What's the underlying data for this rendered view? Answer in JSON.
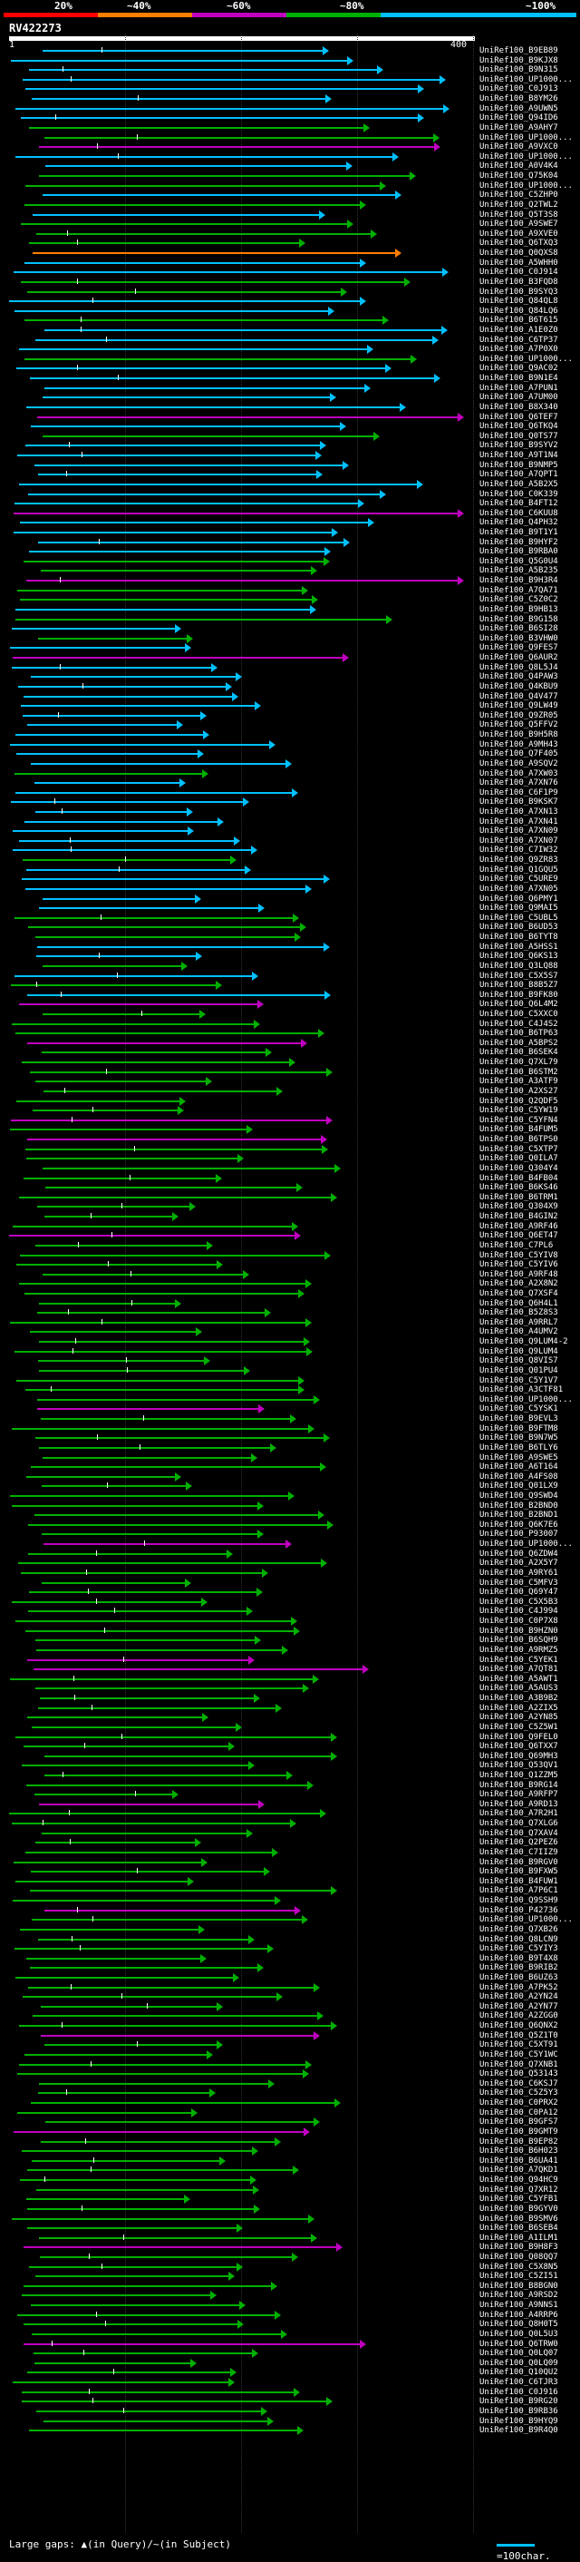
{
  "legend": {
    "colors": [
      "#ff0000",
      "#ff7f00",
      "#bf00bf",
      "#00b000",
      "#00c0ff"
    ],
    "labels": [
      "20%",
      "~40%",
      "~60%",
      "~80%",
      "~100%"
    ]
  },
  "query": {
    "id": "RV422273",
    "start": "1",
    "end": "400"
  },
  "footer": {
    "gaps": "Large gaps: ▲(in Query)/~(in Subject)",
    "scale": "=100char."
  },
  "hits": [
    {
      "label": "UniRef100_B9EB89",
      "c": 4
    },
    {
      "label": "UniRef100_B9KJX8",
      "c": 4
    },
    {
      "label": "UniRef100_B9N315",
      "c": 4
    },
    {
      "label": "UniRef100_UP1000...",
      "c": 4
    },
    {
      "label": "UniRef100_C0J913",
      "c": 4
    },
    {
      "label": "UniRef100_B8YM26",
      "c": 4
    },
    {
      "label": "UniRef100_A9UWN5",
      "c": 4
    },
    {
      "label": "UniRef100_Q94ID6",
      "c": 4
    },
    {
      "label": "UniRef100_A9AHY7",
      "c": 3
    },
    {
      "label": "UniRef100_UP1000...",
      "c": 3
    },
    {
      "label": "UniRef100_A9VXC0",
      "c": 2
    },
    {
      "label": "UniRef100_UP1000...",
      "c": 4
    },
    {
      "label": "UniRef100_A0V4K4",
      "c": 4
    },
    {
      "label": "UniRef100_Q75K04",
      "c": 3
    },
    {
      "label": "UniRef100_UP1000...",
      "c": 3
    },
    {
      "label": "UniRef100_C5ZHP0",
      "c": 4
    },
    {
      "label": "UniRef100_Q2TWL2",
      "c": 3
    },
    {
      "label": "UniRef100_Q5T3S8",
      "c": 4
    },
    {
      "label": "UniRef100_A9SWE7",
      "c": 3
    },
    {
      "label": "UniRef100_A9XVE0",
      "c": 3
    },
    {
      "label": "UniRef100_Q6TXQ3",
      "c": 3
    },
    {
      "label": "UniRef100_Q0QXS8",
      "c": 1
    },
    {
      "label": "UniRef100_A5WHH0",
      "c": 4
    },
    {
      "label": "UniRef100_C0J914",
      "c": 4
    },
    {
      "label": "UniRef100_B3FQD8",
      "c": 3
    },
    {
      "label": "UniRef100_B9SYQ3",
      "c": 3
    },
    {
      "label": "UniRef100_Q84QL8",
      "c": 4
    },
    {
      "label": "UniRef100_Q84LQ6",
      "c": 4
    },
    {
      "label": "UniRef100_B6T615",
      "c": 3
    },
    {
      "label": "UniRef100_A1E0Z0",
      "c": 4
    },
    {
      "label": "UniRef100_C6TP37",
      "c": 4
    },
    {
      "label": "UniRef100_A7P0X0",
      "c": 4
    },
    {
      "label": "UniRef100_UP1000...",
      "c": 3
    },
    {
      "label": "UniRef100_Q9AC02",
      "c": 4
    },
    {
      "label": "UniRef100_B9N1E4",
      "c": 4
    },
    {
      "label": "UniRef100_A7PUN1",
      "c": 4
    },
    {
      "label": "UniRef100_A7UM00",
      "c": 4
    },
    {
      "label": "UniRef100_B8X340",
      "c": 4
    },
    {
      "label": "UniRef100_Q6TEF7",
      "c": 2
    },
    {
      "label": "UniRef100_Q6TKQ4",
      "c": 4
    },
    {
      "label": "UniRef100_Q0TS77",
      "c": 3
    },
    {
      "label": "UniRef100_B9SYV2",
      "c": 4
    },
    {
      "label": "UniRef100_A9T1N4",
      "c": 4
    },
    {
      "label": "UniRef100_B9NMP5",
      "c": 4
    },
    {
      "label": "UniRef100_A7QPT1",
      "c": 4
    },
    {
      "label": "UniRef100_A5B2X5",
      "c": 4
    },
    {
      "label": "UniRef100_C0K339",
      "c": 4
    },
    {
      "label": "UniRef100_B4FT12",
      "c": 4
    },
    {
      "label": "UniRef100_C6KUU8",
      "c": 2
    },
    {
      "label": "UniRef100_Q4PH32",
      "c": 4
    },
    {
      "label": "UniRef100_B9T1Y1",
      "c": 4
    },
    {
      "label": "UniRef100_B9HYF2",
      "c": 4
    },
    {
      "label": "UniRef100_B9RBA0",
      "c": 4
    },
    {
      "label": "UniRef100_Q5G0U4",
      "c": 3
    },
    {
      "label": "UniRef100_A5B235",
      "c": 3
    },
    {
      "label": "UniRef100_B9H3R4",
      "c": 2
    },
    {
      "label": "UniRef100_A7QA71",
      "c": 3
    },
    {
      "label": "UniRef100_C5Z0C2",
      "c": 3
    },
    {
      "label": "UniRef100_B9HB13",
      "c": 4
    },
    {
      "label": "UniRef100_B9G158",
      "c": 3
    },
    {
      "label": "UniRef100_B6SI28",
      "c": 4
    },
    {
      "label": "UniRef100_B3VHW0",
      "c": 3
    },
    {
      "label": "UniRef100_Q9FES7",
      "c": 4
    },
    {
      "label": "UniRef100_Q6AUR2",
      "c": 2
    },
    {
      "label": "UniRef100_Q8L5J4",
      "c": 4
    },
    {
      "label": "UniRef100_Q4PAW3",
      "c": 4
    },
    {
      "label": "UniRef100_Q4KBU9",
      "c": 4
    },
    {
      "label": "UniRef100_Q4V477",
      "c": 4
    },
    {
      "label": "UniRef100_Q9LW49",
      "c": 4
    },
    {
      "label": "UniRef100_Q9ZR05",
      "c": 4
    },
    {
      "label": "UniRef100_Q5FFV2",
      "c": 4
    },
    {
      "label": "UniRef100_B9H5R8",
      "c": 4
    },
    {
      "label": "UniRef100_A9MH43",
      "c": 4
    },
    {
      "label": "UniRef100_Q7F405",
      "c": 4
    },
    {
      "label": "UniRef100_A9SQV2",
      "c": 4
    },
    {
      "label": "UniRef100_A7XW03",
      "c": 3
    },
    {
      "label": "UniRef100_A7XN76",
      "c": 4
    },
    {
      "label": "UniRef100_C6F1P9",
      "c": 4
    },
    {
      "label": "UniRef100_B9KSK7",
      "c": 4
    },
    {
      "label": "UniRef100_A7XN13",
      "c": 4
    },
    {
      "label": "UniRef100_A7XN41",
      "c": 4
    },
    {
      "label": "UniRef100_A7XN09",
      "c": 4
    },
    {
      "label": "UniRef100_A7XN07",
      "c": 4
    },
    {
      "label": "UniRef100_C7IW32",
      "c": 4
    },
    {
      "label": "UniRef100_Q9ZR83",
      "c": 3
    },
    {
      "label": "UniRef100_Q1GQU5",
      "c": 4
    },
    {
      "label": "UniRef100_C5URE9",
      "c": 4
    },
    {
      "label": "UniRef100_A7XN05",
      "c": 4
    },
    {
      "label": "UniRef100_Q6PMY1",
      "c": 4
    },
    {
      "label": "UniRef100_Q9MAI5",
      "c": 4
    },
    {
      "label": "UniRef100_C5UBL5",
      "c": 3
    },
    {
      "label": "UniRef100_B6UD53",
      "c": 3
    },
    {
      "label": "UniRef100_B6TYT8",
      "c": 3
    },
    {
      "label": "UniRef100_A5HSS1",
      "c": 4
    },
    {
      "label": "UniRef100_Q6KS13",
      "c": 4
    },
    {
      "label": "UniRef100_Q3LQ88",
      "c": 3
    },
    {
      "label": "UniRef100_C5X5S7",
      "c": 4
    },
    {
      "label": "UniRef100_B8B5Z7",
      "c": 3
    },
    {
      "label": "UniRef100_B9FK80",
      "c": 4
    },
    {
      "label": "UniRef100_Q6L4M2",
      "c": 2
    },
    {
      "label": "UniRef100_C5XXC0",
      "c": 3
    },
    {
      "label": "UniRef100_C4J4S2",
      "c": 3
    },
    {
      "label": "UniRef100_B6TP63",
      "c": 3
    },
    {
      "label": "UniRef100_A5BPS2",
      "c": 2
    },
    {
      "label": "UniRef100_B6SEK4",
      "c": 3
    },
    {
      "label": "UniRef100_Q7XL79",
      "c": 3
    },
    {
      "label": "UniRef100_B6STM2",
      "c": 3
    },
    {
      "label": "UniRef100_A3ATF9",
      "c": 3
    },
    {
      "label": "UniRef100_A2XS27",
      "c": 3
    },
    {
      "label": "UniRef100_Q2QDF5",
      "c": 3
    },
    {
      "label": "UniRef100_C5YW19",
      "c": 3
    },
    {
      "label": "UniRef100_C5YFN4",
      "c": 2
    },
    {
      "label": "UniRef100_B4FUM5",
      "c": 3
    },
    {
      "label": "UniRef100_B6TPS0",
      "c": 2
    },
    {
      "label": "UniRef100_C5XTP7",
      "c": 3
    },
    {
      "label": "UniRef100_Q0ILA7",
      "c": 3
    },
    {
      "label": "UniRef100_Q304Y4",
      "c": 3
    },
    {
      "label": "UniRef100_B4FB04",
      "c": 3
    },
    {
      "label": "UniRef100_B6KS46",
      "c": 3
    },
    {
      "label": "UniRef100_B6TRM1",
      "c": 3
    },
    {
      "label": "UniRef100_Q304X9",
      "c": 3
    },
    {
      "label": "UniRef100_B4GIN2",
      "c": 3
    },
    {
      "label": "UniRef100_A9RF46",
      "c": 3
    },
    {
      "label": "UniRef100_Q6ET47",
      "c": 2
    },
    {
      "label": "UniRef100_C7PL6",
      "c": 3
    },
    {
      "label": "UniRef100_C5YIV8",
      "c": 3
    },
    {
      "label": "UniRef100_C5YIV6",
      "c": 3
    },
    {
      "label": "UniRef100_A9RF48",
      "c": 3
    },
    {
      "label": "UniRef100_A2X8N2",
      "c": 3
    },
    {
      "label": "UniRef100_Q7XSF4",
      "c": 3
    },
    {
      "label": "UniRef100_Q6H4L1",
      "c": 3
    },
    {
      "label": "UniRef100_B5Z8S3",
      "c": 3
    },
    {
      "label": "UniRef100_A9RRL7",
      "c": 3
    },
    {
      "label": "UniRef100_A4UMV2",
      "c": 3
    },
    {
      "label": "UniRef100_Q9LUM4-2",
      "c": 3
    },
    {
      "label": "UniRef100_Q9LUM4",
      "c": 3
    },
    {
      "label": "UniRef100_Q8VIS7",
      "c": 3
    },
    {
      "label": "UniRef100_Q01PU4",
      "c": 3
    },
    {
      "label": "UniRef100_C5Y1V7",
      "c": 3
    },
    {
      "label": "UniRef100_A3CTF81",
      "c": 3
    },
    {
      "label": "UniRef100_UP1000...",
      "c": 3
    },
    {
      "label": "UniRef100_C5YSK1",
      "c": 2
    },
    {
      "label": "UniRef100_B9EVL3",
      "c": 3
    },
    {
      "label": "UniRef100_B9FTM8",
      "c": 3
    },
    {
      "label": "UniRef100_B9N7W5",
      "c": 3
    },
    {
      "label": "UniRef100_B6TLY6",
      "c": 3
    },
    {
      "label": "UniRef100_A9SWE5",
      "c": 3
    },
    {
      "label": "UniRef100_A6T164",
      "c": 3
    },
    {
      "label": "UniRef100_A4FS08",
      "c": 3
    },
    {
      "label": "UniRef100_Q01LX9",
      "c": 3
    },
    {
      "label": "UniRef100_Q9SWD4",
      "c": 3
    },
    {
      "label": "UniRef100_B2BND0",
      "c": 3
    },
    {
      "label": "UniRef100_B2BND1",
      "c": 3
    },
    {
      "label": "UniRef100_Q6K7E6",
      "c": 3
    },
    {
      "label": "UniRef100_P93007",
      "c": 3
    },
    {
      "label": "UniRef100_UP1000...",
      "c": 2
    },
    {
      "label": "UniRef100_Q6ZDW4",
      "c": 3
    },
    {
      "label": "UniRef100_A2X5Y7",
      "c": 3
    },
    {
      "label": "UniRef100_A9RY61",
      "c": 3
    },
    {
      "label": "UniRef100_C5MFV3",
      "c": 3
    },
    {
      "label": "UniRef100_Q69Y47",
      "c": 3
    },
    {
      "label": "UniRef100_C5X5B3",
      "c": 3
    },
    {
      "label": "UniRef100_C4J994",
      "c": 3
    },
    {
      "label": "UniRef100_C0P7X8",
      "c": 3
    },
    {
      "label": "UniRef100_B9HZN0",
      "c": 3
    },
    {
      "label": "UniRef100_B6SQH9",
      "c": 3
    },
    {
      "label": "UniRef100_A9RMZ5",
      "c": 3
    },
    {
      "label": "UniRef100_C5YEK1",
      "c": 2
    },
    {
      "label": "UniRef100_A7QT81",
      "c": 2
    },
    {
      "label": "UniRef100_A5AWT1",
      "c": 3
    },
    {
      "label": "UniRef100_A5AUS3",
      "c": 3
    },
    {
      "label": "UniRef100_A3B9B2",
      "c": 3
    },
    {
      "label": "UniRef100_A2ZIX5",
      "c": 3
    },
    {
      "label": "UniRef100_A2YN85",
      "c": 3
    },
    {
      "label": "UniRef100_C5Z5W1",
      "c": 3
    },
    {
      "label": "UniRef100_Q9FEL0",
      "c": 3
    },
    {
      "label": "UniRef100_Q6TXX7",
      "c": 3
    },
    {
      "label": "UniRef100_Q69MH3",
      "c": 3
    },
    {
      "label": "UniRef100_Q53QV1",
      "c": 3
    },
    {
      "label": "UniRef100_Q1ZZM5",
      "c": 3
    },
    {
      "label": "UniRef100_B9RG14",
      "c": 3
    },
    {
      "label": "UniRef100_A9RFP7",
      "c": 3
    },
    {
      "label": "UniRef100_A9RD13",
      "c": 2
    },
    {
      "label": "UniRef100_A7R2H1",
      "c": 3
    },
    {
      "label": "UniRef100_Q7XLG6",
      "c": 3
    },
    {
      "label": "UniRef100_Q7XAV4",
      "c": 3
    },
    {
      "label": "UniRef100_Q2PEZ6",
      "c": 3
    },
    {
      "label": "UniRef100_C7IIZ9",
      "c": 3
    },
    {
      "label": "UniRef100_B9RGV0",
      "c": 3
    },
    {
      "label": "UniRef100_B9FXW5",
      "c": 3
    },
    {
      "label": "UniRef100_B4FUW1",
      "c": 3
    },
    {
      "label": "UniRef100_A7P6C1",
      "c": 3
    },
    {
      "label": "UniRef100_Q9SSH9",
      "c": 3
    },
    {
      "label": "UniRef100_P42736",
      "c": 2
    },
    {
      "label": "UniRef100_UP1000...",
      "c": 3
    },
    {
      "label": "UniRef100_Q7XB26",
      "c": 3
    },
    {
      "label": "UniRef100_Q8LCN9",
      "c": 3
    },
    {
      "label": "UniRef100_C5YIY3",
      "c": 3
    },
    {
      "label": "UniRef100_B9T4X8",
      "c": 3
    },
    {
      "label": "UniRef100_B9RIB2",
      "c": 3
    },
    {
      "label": "UniRef100_B6UZ63",
      "c": 3
    },
    {
      "label": "UniRef100_A7PK52",
      "c": 3
    },
    {
      "label": "UniRef100_A2YN24",
      "c": 3
    },
    {
      "label": "UniRef100_A2YN77",
      "c": 3
    },
    {
      "label": "UniRef100_A2ZGG0",
      "c": 3
    },
    {
      "label": "UniRef100_Q6QNX2",
      "c": 3
    },
    {
      "label": "UniRef100_Q5Z1T0",
      "c": 2
    },
    {
      "label": "UniRef100_C5XT91",
      "c": 3
    },
    {
      "label": "UniRef100_C5Y1WC",
      "c": 3
    },
    {
      "label": "UniRef100_Q7XNB1",
      "c": 3
    },
    {
      "label": "UniRef100_Q53143",
      "c": 3
    },
    {
      "label": "UniRef100_C6KSJ7",
      "c": 3
    },
    {
      "label": "UniRef100_C5Z5Y3",
      "c": 3
    },
    {
      "label": "UniRef100_C0PRX2",
      "c": 3
    },
    {
      "label": "UniRef100_C0PA12",
      "c": 3
    },
    {
      "label": "UniRef100_B9GFS7",
      "c": 3
    },
    {
      "label": "UniRef100_B9GMT9",
      "c": 2
    },
    {
      "label": "UniRef100_B9EP82",
      "c": 3
    },
    {
      "label": "UniRef100_B6H023",
      "c": 3
    },
    {
      "label": "UniRef100_B6UA41",
      "c": 3
    },
    {
      "label": "UniRef100_A7QKD1",
      "c": 3
    },
    {
      "label": "UniRef100_Q94HC9",
      "c": 3
    },
    {
      "label": "UniRef100_Q7XR12",
      "c": 3
    },
    {
      "label": "UniRef100_C5YFB1",
      "c": 3
    },
    {
      "label": "UniRef100_B9GYV0",
      "c": 3
    },
    {
      "label": "UniRef100_B9SMV6",
      "c": 3
    },
    {
      "label": "UniRef100_B6SEB4",
      "c": 3
    },
    {
      "label": "UniRef100_A1ILM1",
      "c": 3
    },
    {
      "label": "UniRef100_B9H8F3",
      "c": 2
    },
    {
      "label": "UniRef100_Q08QQ7",
      "c": 3
    },
    {
      "label": "UniRef100_C5X8N5",
      "c": 3
    },
    {
      "label": "UniRef100_C5ZI51",
      "c": 3
    },
    {
      "label": "UniRef100_B8BGN0",
      "c": 3
    },
    {
      "label": "UniRef100_A9RSD2",
      "c": 3
    },
    {
      "label": "UniRef100_A9NNS1",
      "c": 3
    },
    {
      "label": "UniRef100_A4RRP6",
      "c": 3
    },
    {
      "label": "UniRef100_Q8H0T5",
      "c": 3
    },
    {
      "label": "UniRef100_Q0L5U3",
      "c": 3
    },
    {
      "label": "UniRef100_Q6TRW0",
      "c": 2
    },
    {
      "label": "UniRef100_Q0LQ07",
      "c": 3
    },
    {
      "label": "UniRef100_Q0LQ09",
      "c": 3
    },
    {
      "label": "UniRef100_Q10QU2",
      "c": 3
    },
    {
      "label": "UniRef100_C6TJR3",
      "c": 3
    },
    {
      "label": "UniRef100_C0J916",
      "c": 3
    },
    {
      "label": "UniRef100_B9RG20",
      "c": 3
    },
    {
      "label": "UniRef100_B9RB36",
      "c": 3
    },
    {
      "label": "UniRef100_B9HYQ9",
      "c": 3
    },
    {
      "label": "UniRef100_B9R4Q0",
      "c": 3
    }
  ]
}
